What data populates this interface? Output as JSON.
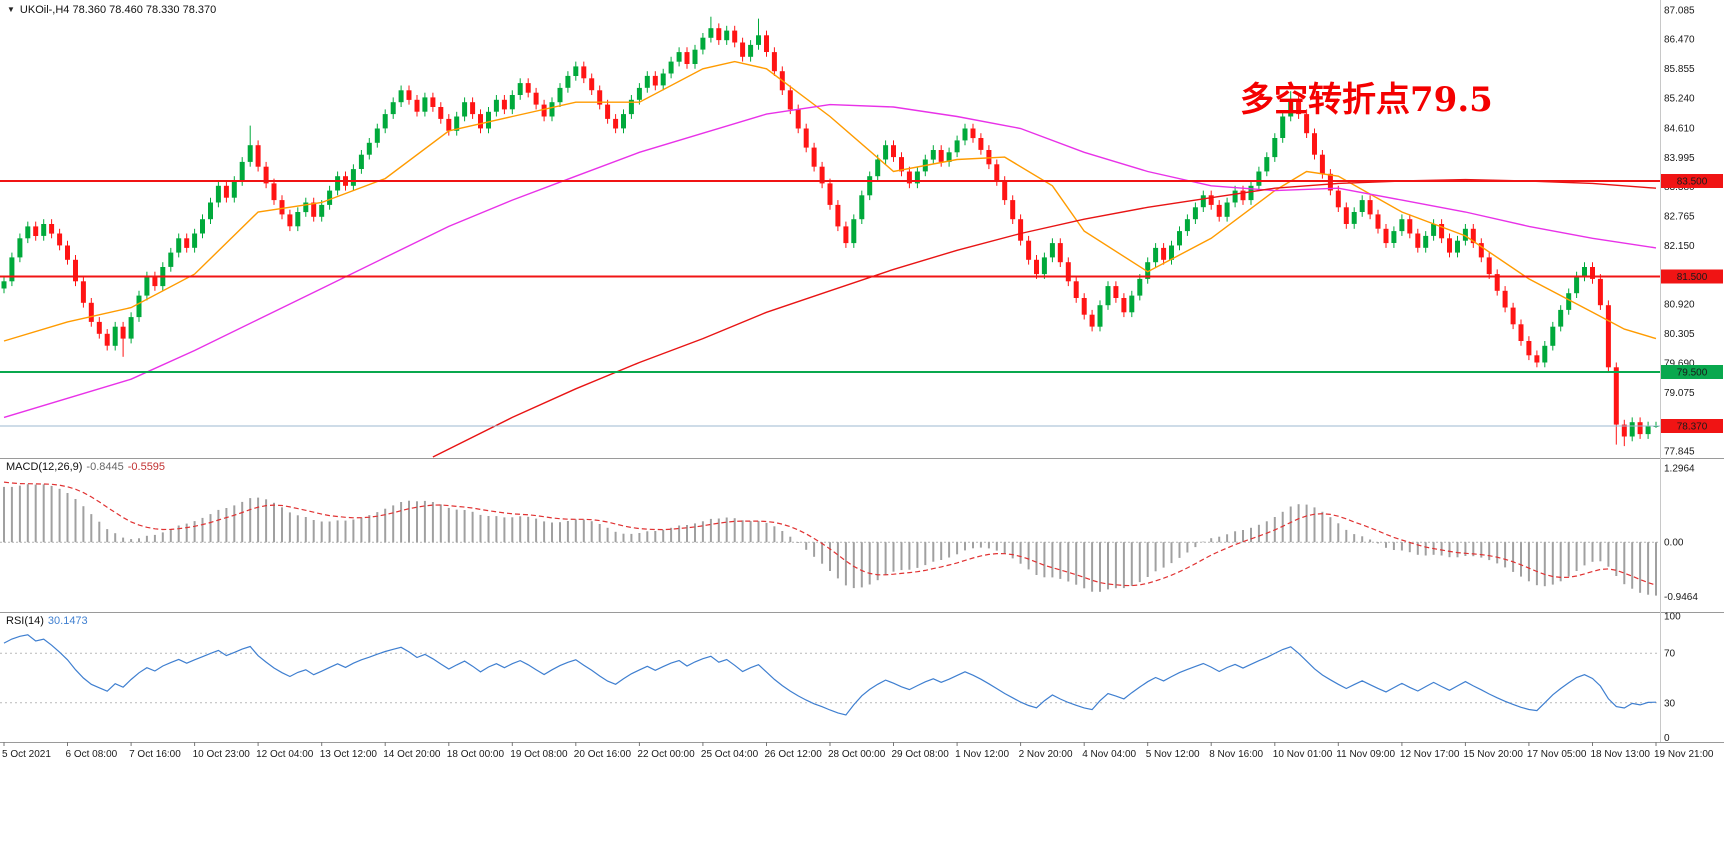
{
  "header": {
    "dropdown_icon": "▼",
    "symbol_info": "UKOil-,H4 78.360 78.460 78.330 78.370"
  },
  "annotation": {
    "text": "多空转折点79.5",
    "color": "#f40000"
  },
  "indicators": {
    "macd": {
      "label": "MACD(12,26,9)",
      "value_main": "-0.8445",
      "value_signal": "-0.5595",
      "scale_labels": [
        "1.2964",
        "0.00",
        "-0.9464"
      ]
    },
    "rsi": {
      "label": "RSI(14)",
      "value": "30.1473",
      "scale_labels": [
        "100",
        "70",
        "30",
        "0"
      ]
    }
  },
  "chart_data": {
    "type": "candlestick",
    "symbol": "UKOil-",
    "timeframe": "H4",
    "current_ohlc": {
      "open": 78.36,
      "high": 78.46,
      "low": 78.33,
      "close": 78.37
    },
    "ylim": [
      77.7,
      87.29
    ],
    "price_ticks": [
      {
        "v": 87.085,
        "t": "87.085"
      },
      {
        "v": 86.47,
        "t": "86.470"
      },
      {
        "v": 85.855,
        "t": "85.855"
      },
      {
        "v": 85.24,
        "t": "85.240"
      },
      {
        "v": 84.61,
        "t": "84.610"
      },
      {
        "v": 83.995,
        "t": "83.995"
      },
      {
        "v": 83.38,
        "t": "83.380"
      },
      {
        "v": 82.765,
        "t": "82.765"
      },
      {
        "v": 82.15,
        "t": "82.150"
      },
      {
        "v": 80.92,
        "t": "80.920"
      },
      {
        "v": 80.305,
        "t": "80.305"
      },
      {
        "v": 79.69,
        "t": "79.690"
      },
      {
        "v": 79.075,
        "t": "79.075"
      },
      {
        "v": 77.845,
        "t": "77.845"
      }
    ],
    "time_labels": [
      {
        "bar": 0,
        "t": "5 Oct 2021"
      },
      {
        "bar": 8,
        "t": "6 Oct 08:00"
      },
      {
        "bar": 16,
        "t": "7 Oct 16:00"
      },
      {
        "bar": 24,
        "t": "10 Oct 23:00"
      },
      {
        "bar": 32,
        "t": "12 Oct 04:00"
      },
      {
        "bar": 40,
        "t": "13 Oct 12:00"
      },
      {
        "bar": 48,
        "t": "14 Oct 20:00"
      },
      {
        "bar": 56,
        "t": "18 Oct 00:00"
      },
      {
        "bar": 64,
        "t": "19 Oct 08:00"
      },
      {
        "bar": 72,
        "t": "20 Oct 16:00"
      },
      {
        "bar": 80,
        "t": "22 Oct 00:00"
      },
      {
        "bar": 88,
        "t": "25 Oct 04:00"
      },
      {
        "bar": 96,
        "t": "26 Oct 12:00"
      },
      {
        "bar": 104,
        "t": "28 Oct 00:00"
      },
      {
        "bar": 112,
        "t": "29 Oct 08:00"
      },
      {
        "bar": 120,
        "t": "1 Nov 12:00"
      },
      {
        "bar": 128,
        "t": "2 Nov 20:00"
      },
      {
        "bar": 136,
        "t": "4 Nov 04:00"
      },
      {
        "bar": 144,
        "t": "5 Nov 12:00"
      },
      {
        "bar": 152,
        "t": "8 Nov 16:00"
      },
      {
        "bar": 160,
        "t": "10 Nov 01:00"
      },
      {
        "bar": 168,
        "t": "11 Nov 09:00"
      },
      {
        "bar": 176,
        "t": "12 Nov 17:00"
      },
      {
        "bar": 184,
        "t": "15 Nov 20:00"
      },
      {
        "bar": 192,
        "t": "17 Nov 05:00"
      },
      {
        "bar": 200,
        "t": "18 Nov 13:00"
      },
      {
        "bar": 208,
        "t": "19 Nov 21:00"
      }
    ],
    "closes": [
      81.4,
      81.9,
      82.3,
      82.55,
      82.35,
      82.6,
      82.4,
      82.15,
      81.85,
      81.4,
      80.95,
      80.55,
      80.3,
      80.05,
      80.45,
      80.2,
      80.65,
      81.1,
      81.5,
      81.3,
      81.7,
      82.0,
      82.3,
      82.1,
      82.4,
      82.7,
      83.05,
      83.4,
      83.15,
      83.5,
      83.9,
      84.25,
      83.8,
      83.45,
      83.1,
      82.8,
      82.55,
      82.85,
      83.05,
      82.75,
      83.0,
      83.3,
      83.6,
      83.4,
      83.75,
      84.05,
      84.3,
      84.6,
      84.9,
      85.15,
      85.4,
      85.2,
      84.95,
      85.25,
      85.05,
      84.8,
      84.55,
      84.85,
      85.15,
      84.9,
      84.6,
      84.95,
      85.2,
      85.0,
      85.3,
      85.55,
      85.35,
      85.1,
      84.85,
      85.15,
      85.45,
      85.7,
      85.9,
      85.65,
      85.4,
      85.1,
      84.8,
      84.6,
      84.9,
      85.2,
      85.45,
      85.7,
      85.5,
      85.75,
      86.0,
      86.2,
      85.95,
      86.25,
      86.5,
      86.7,
      86.45,
      86.65,
      86.4,
      86.1,
      86.35,
      86.55,
      86.2,
      85.8,
      85.4,
      85.0,
      84.6,
      84.2,
      83.8,
      83.45,
      83.0,
      82.55,
      82.2,
      82.7,
      83.2,
      83.6,
      83.95,
      84.25,
      84.0,
      83.7,
      83.45,
      83.7,
      83.95,
      84.15,
      83.9,
      84.1,
      84.35,
      84.6,
      84.4,
      84.15,
      83.85,
      83.5,
      83.1,
      82.7,
      82.25,
      81.85,
      81.55,
      81.9,
      82.2,
      81.8,
      81.4,
      81.05,
      80.7,
      80.45,
      80.9,
      81.3,
      81.05,
      80.75,
      81.1,
      81.45,
      81.8,
      82.1,
      81.85,
      82.15,
      82.45,
      82.7,
      82.95,
      83.2,
      83.0,
      82.75,
      83.05,
      83.3,
      83.1,
      83.4,
      83.7,
      84.0,
      84.4,
      84.85,
      85.2,
      84.9,
      84.5,
      84.05,
      83.65,
      83.3,
      82.95,
      82.6,
      82.85,
      83.1,
      82.8,
      82.5,
      82.2,
      82.45,
      82.7,
      82.4,
      82.1,
      82.35,
      82.6,
      82.3,
      82.0,
      82.25,
      82.5,
      82.2,
      81.9,
      81.55,
      81.2,
      80.85,
      80.5,
      80.15,
      79.85,
      79.7,
      80.05,
      80.45,
      80.8,
      81.15,
      81.5,
      81.7,
      81.45,
      80.9,
      79.6,
      78.4,
      78.15,
      78.45,
      78.2,
      78.36,
      78.37
    ],
    "default_wick": 0.1,
    "wick_overrides": {
      "15": {
        "l": 79.82
      },
      "31": {
        "h": 84.66
      },
      "89": {
        "h": 86.94
      },
      "95": {
        "h": 86.9
      },
      "162": {
        "h": 85.38
      },
      "203": {
        "l": 77.98
      },
      "204": {
        "l": 77.95
      },
      "208": {
        "h": 78.46,
        "l": 78.33
      }
    },
    "seed": {
      "ramp_bars": 34,
      "start": 75.0,
      "end": 81.3,
      "tail": [
        81.5,
        81.1,
        81.45,
        81.15,
        81.4,
        81.25
      ]
    },
    "colors": {
      "bull": "#00a93b",
      "bear": "#ff1414",
      "macd_hist": "#a0a0a0",
      "macd_signal": "#e03232",
      "rsi_line": "#3f7fd0",
      "grid": "#b9b9b9"
    },
    "hlines": [
      {
        "value": 83.5,
        "label": "83.500",
        "color": "#f01414",
        "tag": "#f01414",
        "width": 2
      },
      {
        "value": 81.5,
        "label": "81.500",
        "color": "#f01414",
        "tag": "#f01414",
        "width": 2
      },
      {
        "value": 79.5,
        "label": "79.500",
        "color": "#09a84e",
        "tag": "#09a84e",
        "width": 2
      },
      {
        "value": 78.37,
        "label": "78.370",
        "color": "#9db8d2",
        "tag": "#f01414",
        "width": 1
      }
    ],
    "moving_averages": [
      {
        "name": "ma-fast-orange",
        "color": "#ff9b00",
        "points": [
          [
            0,
            80.15
          ],
          [
            8,
            80.55
          ],
          [
            16,
            80.85
          ],
          [
            24,
            81.55
          ],
          [
            32,
            82.85
          ],
          [
            40,
            83.05
          ],
          [
            48,
            83.55
          ],
          [
            56,
            84.55
          ],
          [
            64,
            84.85
          ],
          [
            72,
            85.15
          ],
          [
            80,
            85.15
          ],
          [
            88,
            85.85
          ],
          [
            92,
            86.0
          ],
          [
            96,
            85.85
          ],
          [
            104,
            84.85
          ],
          [
            112,
            83.7
          ],
          [
            120,
            83.95
          ],
          [
            126,
            84.0
          ],
          [
            132,
            83.4
          ],
          [
            136,
            82.45
          ],
          [
            144,
            81.6
          ],
          [
            152,
            82.3
          ],
          [
            160,
            83.3
          ],
          [
            164,
            83.7
          ],
          [
            168,
            83.6
          ],
          [
            176,
            82.85
          ],
          [
            184,
            82.35
          ],
          [
            192,
            81.45
          ],
          [
            200,
            80.75
          ],
          [
            204,
            80.4
          ],
          [
            208,
            80.2
          ]
        ]
      },
      {
        "name": "ma-mid-magenta",
        "color": "#e832e8",
        "points": [
          [
            0,
            78.55
          ],
          [
            8,
            78.95
          ],
          [
            16,
            79.35
          ],
          [
            24,
            79.95
          ],
          [
            32,
            80.6
          ],
          [
            40,
            81.25
          ],
          [
            48,
            81.9
          ],
          [
            56,
            82.55
          ],
          [
            64,
            83.1
          ],
          [
            72,
            83.6
          ],
          [
            80,
            84.1
          ],
          [
            88,
            84.5
          ],
          [
            96,
            84.9
          ],
          [
            104,
            85.1
          ],
          [
            112,
            85.05
          ],
          [
            120,
            84.85
          ],
          [
            128,
            84.6
          ],
          [
            136,
            84.1
          ],
          [
            144,
            83.7
          ],
          [
            152,
            83.4
          ],
          [
            160,
            83.3
          ],
          [
            168,
            83.35
          ],
          [
            176,
            83.1
          ],
          [
            184,
            82.85
          ],
          [
            192,
            82.55
          ],
          [
            200,
            82.3
          ],
          [
            208,
            82.1
          ]
        ]
      },
      {
        "name": "ma-slow-red",
        "color": "#e81414",
        "points": [
          [
            54,
            77.72
          ],
          [
            64,
            78.55
          ],
          [
            72,
            79.15
          ],
          [
            80,
            79.7
          ],
          [
            88,
            80.2
          ],
          [
            96,
            80.75
          ],
          [
            104,
            81.2
          ],
          [
            112,
            81.65
          ],
          [
            120,
            82.05
          ],
          [
            128,
            82.4
          ],
          [
            136,
            82.7
          ],
          [
            144,
            82.95
          ],
          [
            152,
            83.15
          ],
          [
            160,
            83.35
          ],
          [
            168,
            83.45
          ],
          [
            176,
            83.5
          ],
          [
            184,
            83.53
          ],
          [
            192,
            83.5
          ],
          [
            200,
            83.45
          ],
          [
            208,
            83.35
          ]
        ]
      }
    ],
    "macd": {
      "fast": 12,
      "slow": 26,
      "signal_period": 9,
      "ylim": [
        -1.15,
        1.4
      ]
    },
    "rsi": {
      "period": 14,
      "levels": [
        70,
        30
      ]
    }
  }
}
